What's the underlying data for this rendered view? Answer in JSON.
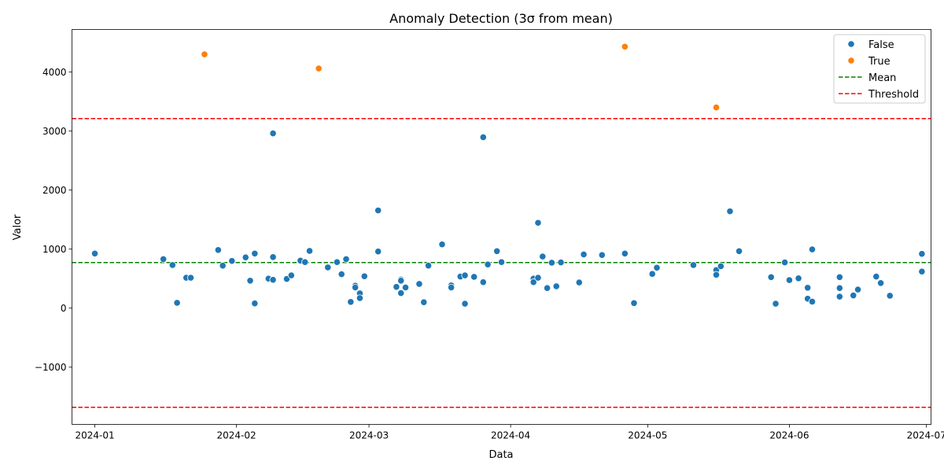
{
  "chart_data": {
    "type": "scatter",
    "title": "Anomaly Detection (3σ from mean)",
    "xlabel": "Data",
    "ylabel": "Valor",
    "x_axis": "date",
    "xlim": [
      "2023-12-27",
      "2024-07-02"
    ],
    "ylim": [
      -1970,
      4720
    ],
    "x_ticks": [
      "2024-01-01",
      "2024-02-01",
      "2024-03-01",
      "2024-04-01",
      "2024-05-01",
      "2024-06-01",
      "2024-07-01"
    ],
    "x_tick_labels": [
      "2024-01",
      "2024-02",
      "2024-03",
      "2024-04",
      "2024-05",
      "2024-06",
      "2024-07"
    ],
    "y_ticks": [
      -1000,
      0,
      1000,
      2000,
      3000,
      4000
    ],
    "y_tick_labels": [
      "−1000",
      "0",
      "1000",
      "2000",
      "3000",
      "4000"
    ],
    "grid": false,
    "legend_position": "top-right",
    "mean": 772,
    "thresholds": [
      3210,
      -1680
    ],
    "series": [
      {
        "name": "False",
        "color": "#1f77b4",
        "points": [
          [
            "2024-01-01",
            925
          ],
          [
            "2024-01-16",
            830
          ],
          [
            "2024-01-18",
            730
          ],
          [
            "2024-01-19",
            90
          ],
          [
            "2024-01-21",
            515
          ],
          [
            "2024-01-22",
            515
          ],
          [
            "2024-01-28",
            985
          ],
          [
            "2024-01-29",
            720
          ],
          [
            "2024-01-31",
            800
          ],
          [
            "2024-02-03",
            860
          ],
          [
            "2024-02-04",
            465
          ],
          [
            "2024-02-05",
            80
          ],
          [
            "2024-02-05",
            925
          ],
          [
            "2024-02-08",
            500
          ],
          [
            "2024-02-09",
            2960
          ],
          [
            "2024-02-09",
            865
          ],
          [
            "2024-02-09",
            480
          ],
          [
            "2024-02-12",
            495
          ],
          [
            "2024-02-13",
            555
          ],
          [
            "2024-02-15",
            805
          ],
          [
            "2024-02-16",
            780
          ],
          [
            "2024-02-17",
            970
          ],
          [
            "2024-02-21",
            690
          ],
          [
            "2024-02-23",
            780
          ],
          [
            "2024-02-24",
            575
          ],
          [
            "2024-02-25",
            830
          ],
          [
            "2024-02-26",
            105
          ],
          [
            "2024-02-27",
            380
          ],
          [
            "2024-02-27",
            350
          ],
          [
            "2024-02-28",
            250
          ],
          [
            "2024-02-28",
            170
          ],
          [
            "2024-02-29",
            540
          ],
          [
            "2024-03-03",
            1655
          ],
          [
            "2024-03-03",
            960
          ],
          [
            "2024-03-07",
            360
          ],
          [
            "2024-03-08",
            485
          ],
          [
            "2024-03-08",
            465
          ],
          [
            "2024-03-08",
            255
          ],
          [
            "2024-03-09",
            350
          ],
          [
            "2024-03-12",
            410
          ],
          [
            "2024-03-13",
            100
          ],
          [
            "2024-03-14",
            720
          ],
          [
            "2024-03-17",
            1080
          ],
          [
            "2024-03-19",
            385
          ],
          [
            "2024-03-19",
            350
          ],
          [
            "2024-03-21",
            535
          ],
          [
            "2024-03-22",
            555
          ],
          [
            "2024-03-22",
            75
          ],
          [
            "2024-03-24",
            530
          ],
          [
            "2024-03-26",
            2895
          ],
          [
            "2024-03-26",
            440
          ],
          [
            "2024-03-27",
            740
          ],
          [
            "2024-03-29",
            965
          ],
          [
            "2024-03-30",
            780
          ],
          [
            "2024-04-06",
            500
          ],
          [
            "2024-04-06",
            440
          ],
          [
            "2024-04-07",
            1445
          ],
          [
            "2024-04-07",
            515
          ],
          [
            "2024-04-08",
            875
          ],
          [
            "2024-04-09",
            340
          ],
          [
            "2024-04-10",
            770
          ],
          [
            "2024-04-11",
            370
          ],
          [
            "2024-04-12",
            775
          ],
          [
            "2024-04-16",
            435
          ],
          [
            "2024-04-17",
            910
          ],
          [
            "2024-04-21",
            900
          ],
          [
            "2024-04-26",
            925
          ],
          [
            "2024-04-28",
            85
          ],
          [
            "2024-05-02",
            580
          ],
          [
            "2024-05-03",
            685
          ],
          [
            "2024-05-11",
            730
          ],
          [
            "2024-05-16",
            645
          ],
          [
            "2024-05-16",
            565
          ],
          [
            "2024-05-17",
            710
          ],
          [
            "2024-05-19",
            1640
          ],
          [
            "2024-05-21",
            965
          ],
          [
            "2024-05-28",
            525
          ],
          [
            "2024-05-29",
            75
          ],
          [
            "2024-05-31",
            775
          ],
          [
            "2024-06-01",
            475
          ],
          [
            "2024-06-03",
            505
          ],
          [
            "2024-06-05",
            345
          ],
          [
            "2024-06-05",
            160
          ],
          [
            "2024-06-06",
            995
          ],
          [
            "2024-06-06",
            110
          ],
          [
            "2024-06-12",
            525
          ],
          [
            "2024-06-12",
            340
          ],
          [
            "2024-06-12",
            195
          ],
          [
            "2024-06-15",
            215
          ],
          [
            "2024-06-16",
            315
          ],
          [
            "2024-06-20",
            535
          ],
          [
            "2024-06-21",
            425
          ],
          [
            "2024-06-23",
            210
          ],
          [
            "2024-06-30",
            920
          ],
          [
            "2024-06-30",
            620
          ]
        ]
      },
      {
        "name": "True",
        "color": "#ff7f0e",
        "points": [
          [
            "2024-01-25",
            4300
          ],
          [
            "2024-02-19",
            4060
          ],
          [
            "2024-04-26",
            4430
          ],
          [
            "2024-05-16",
            3400
          ]
        ]
      }
    ],
    "reference_lines": [
      {
        "name": "Mean",
        "color": "#008000"
      },
      {
        "name": "Threshold",
        "color": "#ff0000"
      }
    ]
  }
}
